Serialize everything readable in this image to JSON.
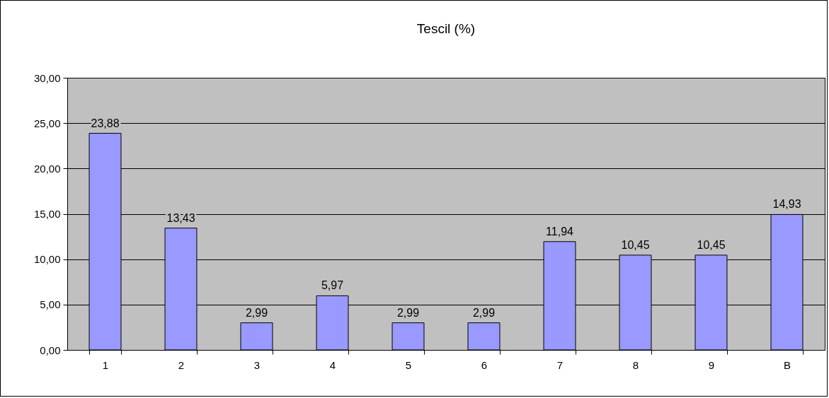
{
  "chart_data": {
    "type": "bar",
    "title": "Tescil (%)",
    "categories": [
      "1",
      "2",
      "3",
      "4",
      "5",
      "6",
      "7",
      "8",
      "9",
      "B"
    ],
    "values": [
      23.88,
      13.43,
      2.99,
      5.97,
      2.99,
      2.99,
      11.94,
      10.45,
      10.45,
      14.93
    ],
    "value_labels": [
      "23,88",
      "13,43",
      "2,99",
      "5,97",
      "2,99",
      "2,99",
      "11,94",
      "10,45",
      "10,45",
      "14,93"
    ],
    "color": "#9999ff",
    "ylim": [
      0,
      30
    ],
    "yticks": [
      {
        "value": 0,
        "label": "0,00"
      },
      {
        "value": 5,
        "label": "5,00"
      },
      {
        "value": 10,
        "label": "10,00"
      },
      {
        "value": 15,
        "label": "15,00"
      },
      {
        "value": 20,
        "label": "20,00"
      },
      {
        "value": 25,
        "label": "25,00"
      },
      {
        "value": 30,
        "label": "30,00"
      }
    ],
    "grid": "y"
  }
}
